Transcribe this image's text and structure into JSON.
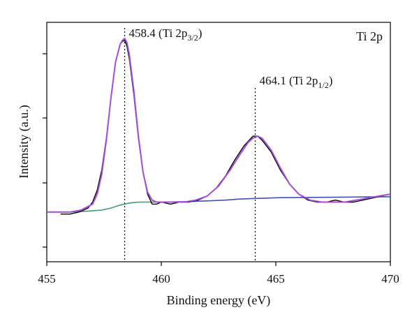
{
  "chart_data": {
    "type": "line",
    "title": "",
    "panel_label": "Ti 2p",
    "xlabel": "Binding energy (eV)",
    "ylabel": "Intensity (a.u.)",
    "xlim": [
      455,
      470
    ],
    "ylim": [
      0,
      1
    ],
    "x_ticks": [
      455,
      460,
      465,
      470
    ],
    "y_ticks_unlabeled": true,
    "grid": false,
    "annotations": [
      {
        "x": 458.4,
        "text": "458.4 (Ti 2p",
        "sub": "3/2",
        "suffix": ")"
      },
      {
        "x": 464.1,
        "text": "464.1 (Ti 2p",
        "sub": "1/2",
        "suffix": ")"
      }
    ],
    "series": [
      {
        "role": "measured",
        "color": "#000000",
        "x": [
          455.6,
          456.0,
          456.4,
          456.8,
          457.0,
          457.2,
          457.4,
          457.6,
          457.8,
          458.0,
          458.2,
          458.3,
          458.4,
          458.5,
          458.6,
          458.8,
          459.0,
          459.2,
          459.4,
          459.6,
          459.8,
          460.0,
          460.4,
          460.8,
          461.2,
          461.6,
          462.0,
          462.4,
          462.8,
          463.2,
          463.6,
          464.0,
          464.2,
          464.4,
          464.8,
          465.2,
          465.6,
          466.0,
          466.4,
          466.8,
          467.2,
          467.6,
          468.0,
          468.4,
          468.8,
          469.2,
          469.6,
          470.0
        ],
        "y": [
          0.12,
          0.12,
          0.13,
          0.15,
          0.18,
          0.24,
          0.34,
          0.5,
          0.7,
          0.88,
          0.97,
          0.985,
          0.99,
          0.96,
          0.9,
          0.72,
          0.5,
          0.33,
          0.22,
          0.17,
          0.17,
          0.18,
          0.17,
          0.18,
          0.18,
          0.19,
          0.21,
          0.25,
          0.31,
          0.39,
          0.46,
          0.51,
          0.51,
          0.49,
          0.43,
          0.34,
          0.27,
          0.22,
          0.19,
          0.18,
          0.18,
          0.19,
          0.18,
          0.18,
          0.19,
          0.2,
          0.21,
          0.22
        ]
      },
      {
        "role": "fit-envelope",
        "color": "#a44fd6",
        "x": [
          455.0,
          455.5,
          456.0,
          456.5,
          457.0,
          457.2,
          457.4,
          457.6,
          457.8,
          458.0,
          458.2,
          458.3,
          458.4,
          458.5,
          458.6,
          458.8,
          459.0,
          459.2,
          459.4,
          459.6,
          459.8,
          460.0,
          460.5,
          461.0,
          461.5,
          462.0,
          462.5,
          463.0,
          463.5,
          463.8,
          464.0,
          464.2,
          464.4,
          464.8,
          465.2,
          465.6,
          466.0,
          466.5,
          467.0,
          467.5,
          468.0,
          468.5,
          469.0,
          469.5,
          470.0
        ],
        "y": [
          0.13,
          0.13,
          0.13,
          0.14,
          0.17,
          0.22,
          0.32,
          0.49,
          0.7,
          0.88,
          0.97,
          0.99,
          1.0,
          0.98,
          0.92,
          0.74,
          0.51,
          0.33,
          0.23,
          0.19,
          0.18,
          0.18,
          0.18,
          0.18,
          0.19,
          0.21,
          0.26,
          0.34,
          0.43,
          0.48,
          0.5,
          0.51,
          0.5,
          0.44,
          0.35,
          0.27,
          0.22,
          0.19,
          0.18,
          0.18,
          0.18,
          0.19,
          0.2,
          0.21,
          0.22
        ]
      },
      {
        "role": "background-1",
        "color": "#3f9b6f",
        "x": [
          455.0,
          456.0,
          456.8,
          457.4,
          457.8,
          458.2,
          458.6,
          459.0,
          459.5,
          460.0
        ],
        "y": [
          0.13,
          0.13,
          0.135,
          0.14,
          0.15,
          0.165,
          0.175,
          0.18,
          0.18,
          0.18
        ]
      },
      {
        "role": "background-2",
        "color": "#3d51b8",
        "x": [
          460.0,
          461.0,
          462.0,
          462.8,
          463.4,
          464.0,
          464.6,
          465.2,
          466.0,
          467.0,
          468.0,
          469.0,
          470.0
        ],
        "y": [
          0.18,
          0.182,
          0.186,
          0.19,
          0.195,
          0.198,
          0.2,
          0.202,
          0.203,
          0.204,
          0.205,
          0.206,
          0.207
        ]
      }
    ]
  }
}
